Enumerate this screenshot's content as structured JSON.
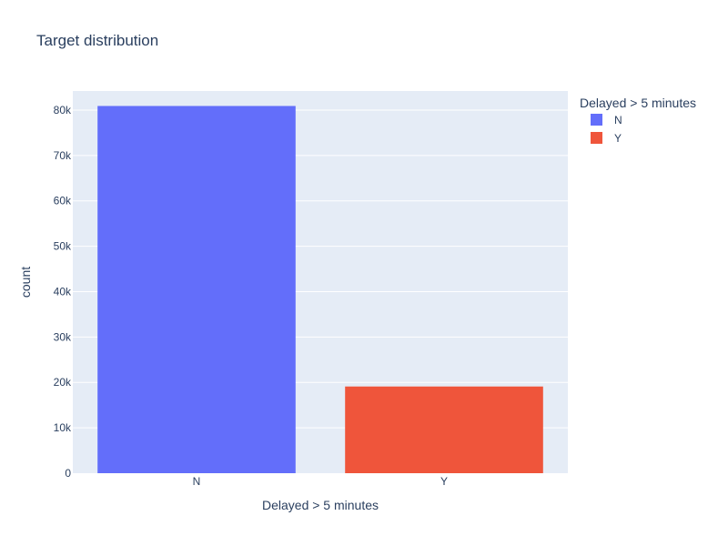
{
  "chart_data": {
    "type": "bar",
    "title": "Target distribution",
    "xlabel": "Delayed > 5 minutes",
    "ylabel": "count",
    "categories": [
      "N",
      "Y"
    ],
    "series": [
      {
        "name": "N",
        "values": [
          80900,
          null
        ],
        "color": "#636efa"
      },
      {
        "name": "Y",
        "values": [
          null,
          19100
        ],
        "color": "#ef553b"
      }
    ],
    "ylim": [
      0,
      84200
    ],
    "y_ticks": [
      0,
      10000,
      20000,
      30000,
      40000,
      50000,
      60000,
      70000,
      80000
    ],
    "y_tick_labels": [
      "0",
      "10k",
      "20k",
      "30k",
      "40k",
      "50k",
      "60k",
      "70k",
      "80k"
    ],
    "grid": true,
    "plot_background": "#e5ecf6",
    "legend": {
      "title": "Delayed > 5 minutes",
      "placement": "top-right, outside plot",
      "items": [
        {
          "label": "N",
          "color": "#636efa"
        },
        {
          "label": "Y",
          "color": "#ef553b"
        }
      ]
    }
  }
}
